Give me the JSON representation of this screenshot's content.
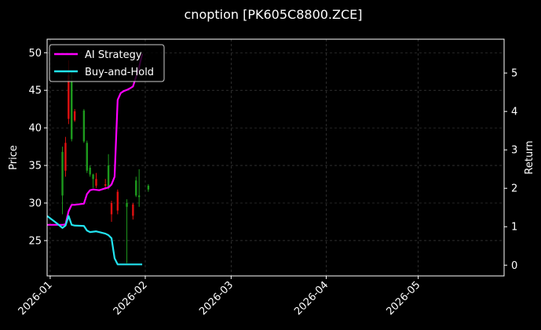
{
  "chart_data": {
    "type": "candlestick+line",
    "title": "cnoption [PK605C8800.ZCE]",
    "xlabel": "",
    "ylabel_left": "Price",
    "ylabel_right": "Return",
    "x_range": [
      "2025-12-31",
      "2026-05-29"
    ],
    "x_ticks": [
      "2026-01",
      "2026-02",
      "2026-03",
      "2026-04",
      "2026-05"
    ],
    "y_left_range": [
      20.3,
      51.8
    ],
    "y_left_ticks": [
      25,
      30,
      35,
      40,
      45,
      50
    ],
    "y_right_range": [
      -0.28,
      5.88
    ],
    "y_right_ticks": [
      0,
      1,
      2,
      3,
      4,
      5
    ],
    "grid": true,
    "legend_position": "top-left",
    "colors": {
      "background": "#000000",
      "foreground": "#ffffff",
      "grid": "#4a4a4a",
      "candle_up": "#1d9a1d",
      "candle_down": "#e01010",
      "strategy": "#ff00ff",
      "buy_hold": "#22e4f0"
    },
    "candles": [
      {
        "date": "2026-01-05",
        "open": 31.0,
        "high": 37.5,
        "low": 28.5,
        "close": 36.8
      },
      {
        "date": "2026-01-06",
        "open": 38.0,
        "high": 38.8,
        "low": 33.5,
        "close": 34.3
      },
      {
        "date": "2026-01-07",
        "open": 47.0,
        "high": 49.0,
        "low": 40.5,
        "close": 41.2
      },
      {
        "date": "2026-01-08",
        "open": 38.5,
        "high": 47.5,
        "low": 38.2,
        "close": 46.2
      },
      {
        "date": "2026-01-09",
        "open": 42.2,
        "high": 42.5,
        "low": 40.8,
        "close": 41.0
      },
      {
        "date": "2026-01-12",
        "open": 38.2,
        "high": 42.5,
        "low": 38.0,
        "close": 42.3
      },
      {
        "date": "2026-01-13",
        "open": 34.3,
        "high": 38.3,
        "low": 34.0,
        "close": 38.0
      },
      {
        "date": "2026-01-14",
        "open": 33.8,
        "high": 35.0,
        "low": 33.5,
        "close": 34.7
      },
      {
        "date": "2026-01-15",
        "open": 33.2,
        "high": 33.9,
        "low": 32.0,
        "close": 33.8
      },
      {
        "date": "2026-01-16",
        "open": 33.2,
        "high": 34.0,
        "low": 32.0,
        "close": 32.3
      },
      {
        "date": "2026-01-19",
        "open": 32.5,
        "high": 33.2,
        "low": 31.8,
        "close": 32.3
      },
      {
        "date": "2026-01-20",
        "open": 32.0,
        "high": 36.5,
        "low": 31.8,
        "close": 35.0
      },
      {
        "date": "2026-01-21",
        "open": 30.0,
        "high": 30.3,
        "low": 27.5,
        "close": 28.5
      },
      {
        "date": "2026-01-23",
        "open": 31.5,
        "high": 31.8,
        "low": 28.5,
        "close": 29.0
      },
      {
        "date": "2026-01-26",
        "open": 29.5,
        "high": 30.5,
        "low": 22.0,
        "close": 30.0
      },
      {
        "date": "2026-01-28",
        "open": 29.8,
        "high": 30.0,
        "low": 27.8,
        "close": 28.3
      },
      {
        "date": "2026-01-29",
        "open": 31.0,
        "high": 33.5,
        "low": 30.8,
        "close": 33.0
      },
      {
        "date": "2026-01-30",
        "open": 30.8,
        "high": 34.5,
        "low": 29.5,
        "close": 31.0
      },
      {
        "date": "2026-02-02",
        "open": 31.8,
        "high": 32.5,
        "low": 31.5,
        "close": 32.3
      }
    ],
    "series": [
      {
        "name": "AI Strategy",
        "axis": "right",
        "points": [
          {
            "date": "2025-12-31",
            "value": 1.05
          },
          {
            "date": "2026-01-05",
            "value": 1.05
          },
          {
            "date": "2026-01-06",
            "value": 1.06
          },
          {
            "date": "2026-01-07",
            "value": 1.4
          },
          {
            "date": "2026-01-08",
            "value": 1.57
          },
          {
            "date": "2026-01-09",
            "value": 1.57
          },
          {
            "date": "2026-01-11",
            "value": 1.59
          },
          {
            "date": "2026-01-12",
            "value": 1.6
          },
          {
            "date": "2026-01-13",
            "value": 1.85
          },
          {
            "date": "2026-01-14",
            "value": 1.95
          },
          {
            "date": "2026-01-15",
            "value": 1.97
          },
          {
            "date": "2026-01-16",
            "value": 1.96
          },
          {
            "date": "2026-01-17",
            "value": 1.95
          },
          {
            "date": "2026-01-19",
            "value": 2.0
          },
          {
            "date": "2026-01-20",
            "value": 2.02
          },
          {
            "date": "2026-01-21",
            "value": 2.1
          },
          {
            "date": "2026-01-22",
            "value": 2.3
          },
          {
            "date": "2026-01-23",
            "value": 4.3
          },
          {
            "date": "2026-01-24",
            "value": 4.48
          },
          {
            "date": "2026-01-25",
            "value": 4.53
          },
          {
            "date": "2026-01-26",
            "value": 4.56
          },
          {
            "date": "2026-01-27",
            "value": 4.6
          },
          {
            "date": "2026-01-28",
            "value": 4.65
          },
          {
            "date": "2026-01-29",
            "value": 4.9
          },
          {
            "date": "2026-01-30",
            "value": 5.15
          },
          {
            "date": "2026-01-31",
            "value": 5.5
          }
        ]
      },
      {
        "name": "Buy-and-Hold",
        "axis": "right",
        "points": [
          {
            "date": "2025-12-31",
            "value": 1.28
          },
          {
            "date": "2026-01-03",
            "value": 1.1
          },
          {
            "date": "2026-01-05",
            "value": 0.97
          },
          {
            "date": "2026-01-06",
            "value": 1.03
          },
          {
            "date": "2026-01-07",
            "value": 1.28
          },
          {
            "date": "2026-01-08",
            "value": 1.05
          },
          {
            "date": "2026-01-09",
            "value": 1.03
          },
          {
            "date": "2026-01-12",
            "value": 1.02
          },
          {
            "date": "2026-01-13",
            "value": 0.9
          },
          {
            "date": "2026-01-14",
            "value": 0.86
          },
          {
            "date": "2026-01-16",
            "value": 0.88
          },
          {
            "date": "2026-01-19",
            "value": 0.82
          },
          {
            "date": "2026-01-20",
            "value": 0.78
          },
          {
            "date": "2026-01-21",
            "value": 0.7
          },
          {
            "date": "2026-01-22",
            "value": 0.18
          },
          {
            "date": "2026-01-23",
            "value": 0.02
          },
          {
            "date": "2026-01-26",
            "value": 0.02
          },
          {
            "date": "2026-01-31",
            "value": 0.02
          }
        ]
      }
    ]
  }
}
